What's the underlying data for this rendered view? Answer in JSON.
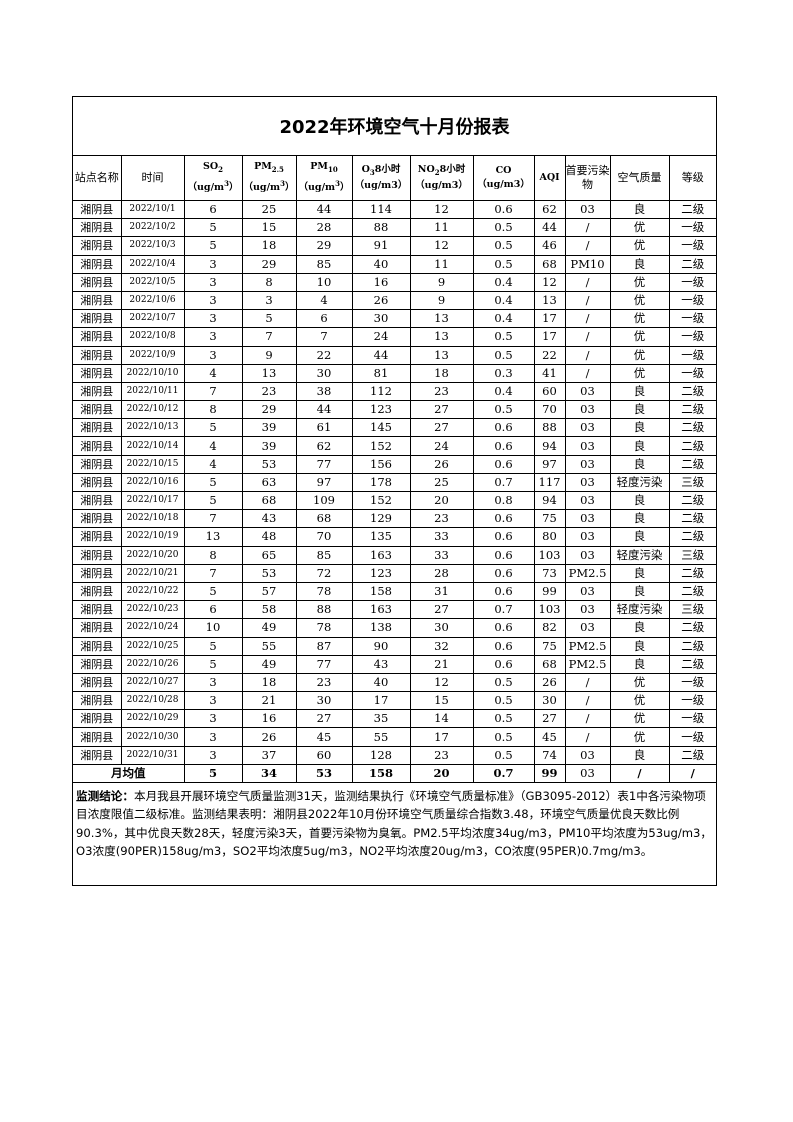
{
  "title": "2022年环境空气十月份报表",
  "headers": [
    {
      "text": "站点名称"
    },
    {
      "text": "时间"
    },
    {
      "main": "SO",
      "sub": "2",
      "unit": "（ug/m",
      "sup": "3",
      "tail": "）"
    },
    {
      "main": "PM",
      "sub": "2.5",
      "unit": "（ug/m",
      "sup": "3",
      "tail": "）"
    },
    {
      "main": "PM",
      "sub": "10",
      "unit": "（ug/m",
      "sup": "3",
      "tail": "）"
    },
    {
      "main": "O",
      "sub": "3",
      "after": "8小时",
      "unit": "（ug/m3）"
    },
    {
      "main": "NO",
      "sub": "2",
      "after": "8小时",
      "unit": "（ug/m3）"
    },
    {
      "main": "CO",
      "unit": "（ug/m3）"
    },
    {
      "text": "AQI"
    },
    {
      "text": "首要污染物"
    },
    {
      "text": "空气质量"
    },
    {
      "text": "等级"
    }
  ],
  "rows": [
    [
      "湘阴县",
      "2022/10/1",
      "6",
      "25",
      "44",
      "114",
      "12",
      "0.6",
      "62",
      "03",
      "良",
      "二级"
    ],
    [
      "湘阴县",
      "2022/10/2",
      "5",
      "15",
      "28",
      "88",
      "11",
      "0.5",
      "44",
      "/",
      "优",
      "一级"
    ],
    [
      "湘阴县",
      "2022/10/3",
      "5",
      "18",
      "29",
      "91",
      "12",
      "0.5",
      "46",
      "/",
      "优",
      "一级"
    ],
    [
      "湘阴县",
      "2022/10/4",
      "3",
      "29",
      "85",
      "40",
      "11",
      "0.5",
      "68",
      "PM10",
      "良",
      "二级"
    ],
    [
      "湘阴县",
      "2022/10/5",
      "3",
      "8",
      "10",
      "16",
      "9",
      "0.4",
      "12",
      "/",
      "优",
      "一级"
    ],
    [
      "湘阴县",
      "2022/10/6",
      "3",
      "3",
      "4",
      "26",
      "9",
      "0.4",
      "13",
      "/",
      "优",
      "一级"
    ],
    [
      "湘阴县",
      "2022/10/7",
      "3",
      "5",
      "6",
      "30",
      "13",
      "0.4",
      "17",
      "/",
      "优",
      "一级"
    ],
    [
      "湘阴县",
      "2022/10/8",
      "3",
      "7",
      "7",
      "24",
      "13",
      "0.5",
      "17",
      "/",
      "优",
      "一级"
    ],
    [
      "湘阴县",
      "2022/10/9",
      "3",
      "9",
      "22",
      "44",
      "13",
      "0.5",
      "22",
      "/",
      "优",
      "一级"
    ],
    [
      "湘阴县",
      "2022/10/10",
      "4",
      "13",
      "30",
      "81",
      "18",
      "0.3",
      "41",
      "/",
      "优",
      "一级"
    ],
    [
      "湘阴县",
      "2022/10/11",
      "7",
      "23",
      "38",
      "112",
      "23",
      "0.4",
      "60",
      "03",
      "良",
      "二级"
    ],
    [
      "湘阴县",
      "2022/10/12",
      "8",
      "29",
      "44",
      "123",
      "27",
      "0.5",
      "70",
      "03",
      "良",
      "二级"
    ],
    [
      "湘阴县",
      "2022/10/13",
      "5",
      "39",
      "61",
      "145",
      "27",
      "0.6",
      "88",
      "03",
      "良",
      "二级"
    ],
    [
      "湘阴县",
      "2022/10/14",
      "4",
      "39",
      "62",
      "152",
      "24",
      "0.6",
      "94",
      "03",
      "良",
      "二级"
    ],
    [
      "湘阴县",
      "2022/10/15",
      "4",
      "53",
      "77",
      "156",
      "26",
      "0.6",
      "97",
      "03",
      "良",
      "二级"
    ],
    [
      "湘阴县",
      "2022/10/16",
      "5",
      "63",
      "97",
      "178",
      "25",
      "0.7",
      "117",
      "03",
      "轻度污染",
      "三级"
    ],
    [
      "湘阴县",
      "2022/10/17",
      "5",
      "68",
      "109",
      "152",
      "20",
      "0.8",
      "94",
      "03",
      "良",
      "二级"
    ],
    [
      "湘阴县",
      "2022/10/18",
      "7",
      "43",
      "68",
      "129",
      "23",
      "0.6",
      "75",
      "03",
      "良",
      "二级"
    ],
    [
      "湘阴县",
      "2022/10/19",
      "13",
      "48",
      "70",
      "135",
      "33",
      "0.6",
      "80",
      "03",
      "良",
      "二级"
    ],
    [
      "湘阴县",
      "2022/10/20",
      "8",
      "65",
      "85",
      "163",
      "33",
      "0.6",
      "103",
      "03",
      "轻度污染",
      "三级"
    ],
    [
      "湘阴县",
      "2022/10/21",
      "7",
      "53",
      "72",
      "123",
      "28",
      "0.6",
      "73",
      "PM2.5",
      "良",
      "二级"
    ],
    [
      "湘阴县",
      "2022/10/22",
      "5",
      "57",
      "78",
      "158",
      "31",
      "0.6",
      "99",
      "03",
      "良",
      "二级"
    ],
    [
      "湘阴县",
      "2022/10/23",
      "6",
      "58",
      "88",
      "163",
      "27",
      "0.7",
      "103",
      "03",
      "轻度污染",
      "三级"
    ],
    [
      "湘阴县",
      "2022/10/24",
      "10",
      "49",
      "78",
      "138",
      "30",
      "0.6",
      "82",
      "03",
      "良",
      "二级"
    ],
    [
      "湘阴县",
      "2022/10/25",
      "5",
      "55",
      "87",
      "90",
      "32",
      "0.6",
      "75",
      "PM2.5",
      "良",
      "二级"
    ],
    [
      "湘阴县",
      "2022/10/26",
      "5",
      "49",
      "77",
      "43",
      "21",
      "0.6",
      "68",
      "PM2.5",
      "良",
      "二级"
    ],
    [
      "湘阴县",
      "2022/10/27",
      "3",
      "18",
      "23",
      "40",
      "12",
      "0.5",
      "26",
      "/",
      "优",
      "一级"
    ],
    [
      "湘阴县",
      "2022/10/28",
      "3",
      "21",
      "30",
      "17",
      "15",
      "0.5",
      "30",
      "/",
      "优",
      "一级"
    ],
    [
      "湘阴县",
      "2022/10/29",
      "3",
      "16",
      "27",
      "35",
      "14",
      "0.5",
      "27",
      "/",
      "优",
      "一级"
    ],
    [
      "湘阴县",
      "2022/10/30",
      "3",
      "26",
      "45",
      "55",
      "17",
      "0.5",
      "45",
      "/",
      "优",
      "一级"
    ],
    [
      "湘阴县",
      "2022/10/31",
      "3",
      "37",
      "60",
      "128",
      "23",
      "0.5",
      "74",
      "03",
      "良",
      "二级"
    ]
  ],
  "average": {
    "label": "月均值",
    "values": [
      "5",
      "34",
      "53",
      "158",
      "20",
      "0.7",
      "99",
      "03",
      "/",
      "/"
    ]
  },
  "conclusion": {
    "label": "监测结论：",
    "text": "本月我县开展环境空气质量监测31天，监测结果执行《环境空气质量标准》（GB3095-2012）表1中各污染物项目浓度限值二级标准。监测结果表明：湘阴县2022年10月份环境空气质量综合指数3.48，环境空气质量优良天数比例90.3%，其中优良天数28天，轻度污染3天，首要污染物为臭氧。PM2.5平均浓度34ug/m3，PM10平均浓度为53ug/m3，O3浓度(90PER)158ug/m3，SO2平均浓度5ug/m3，NO2平均浓度20ug/m3，CO浓度(95PER)0.7mg/m3。"
  }
}
